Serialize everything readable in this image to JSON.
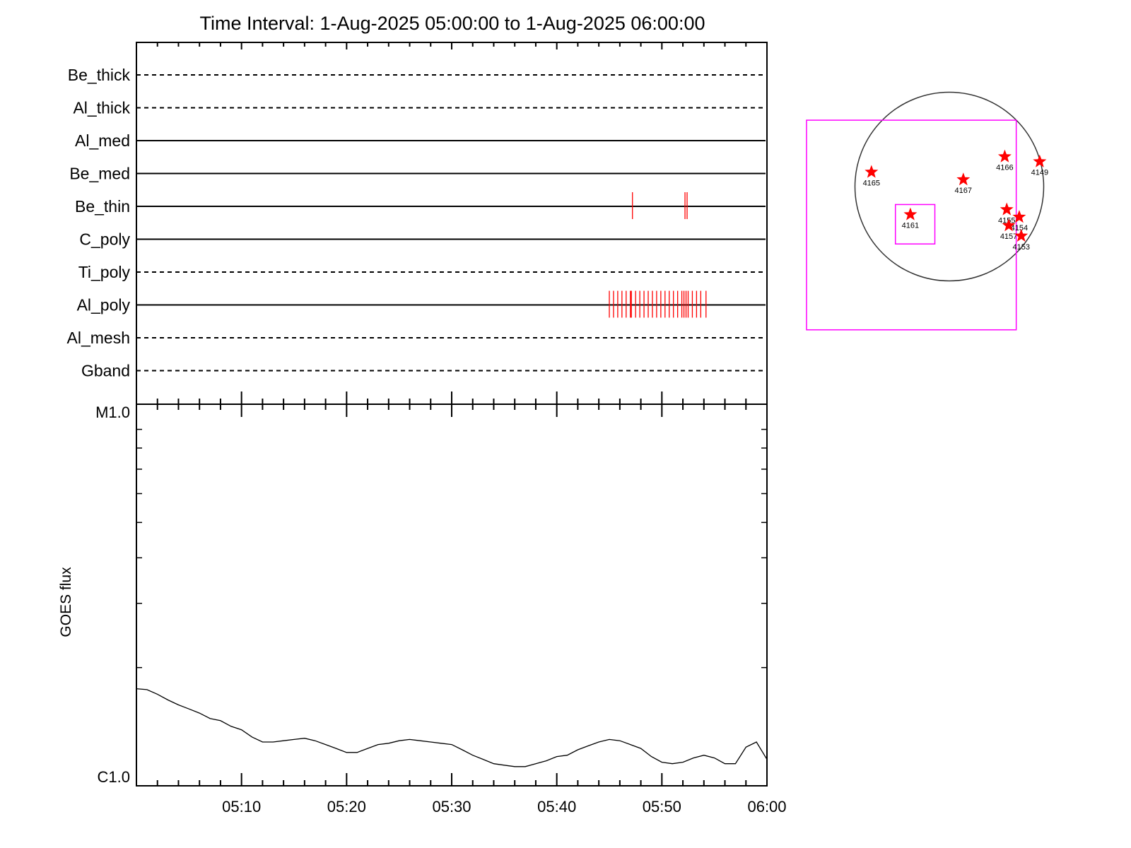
{
  "title": "Time Interval:  1-Aug-2025 05:00:00 to  1-Aug-2025 06:00:00",
  "colors": {
    "axes": "#000000",
    "event_marks": "#ff0000",
    "box": "#ff00ff",
    "stars": "#ff0000",
    "disk": "#333333"
  },
  "chart_data": [
    {
      "type": "timeline",
      "title": "Time Interval:  1-Aug-2025 05:00:00 to  1-Aug-2025 06:00:00",
      "x_range": [
        "05:00",
        "06:00"
      ],
      "rows": [
        {
          "name": "Be_thick",
          "line": "dashed",
          "events": []
        },
        {
          "name": "Al_thick",
          "line": "dashed",
          "events": []
        },
        {
          "name": "Al_med",
          "line": "solid",
          "events": []
        },
        {
          "name": "Be_med",
          "line": "solid",
          "events": []
        },
        {
          "name": "Be_thin",
          "line": "solid",
          "events": [
            "05:47.2",
            "05:52.2",
            "05:52.4"
          ]
        },
        {
          "name": "C_poly",
          "line": "solid",
          "events": []
        },
        {
          "name": "Ti_poly",
          "line": "dashed",
          "events": []
        },
        {
          "name": "Al_poly",
          "line": "solid",
          "events": [
            "05:45.0",
            "05:45.4",
            "05:45.8",
            "05:46.2",
            "05:46.6",
            "05:47.0",
            "05:47.1",
            "05:47.5",
            "05:47.9",
            "05:48.3",
            "05:48.7",
            "05:49.1",
            "05:49.5",
            "05:49.9",
            "05:50.3",
            "05:50.7",
            "05:51.1",
            "05:51.5",
            "05:51.9",
            "05:52.1",
            "05:52.3",
            "05:52.5",
            "05:52.9",
            "05:53.3",
            "05:53.7",
            "05:54.2"
          ]
        },
        {
          "name": "Al_mesh",
          "line": "dashed",
          "events": []
        },
        {
          "name": "Gband",
          "line": "dashed",
          "events": []
        }
      ]
    },
    {
      "type": "line",
      "ylabel": "GOES flux",
      "yscale": "log",
      "ylim": [
        "C1.0",
        "M1.0"
      ],
      "y_tick_labels": [
        "M1.0",
        "C1.0"
      ],
      "x_tick_labels": [
        "05:10",
        "05:20",
        "05:30",
        "05:40",
        "05:50",
        "06:00"
      ],
      "x_range": [
        "05:00",
        "06:00"
      ],
      "series": [
        {
          "x": [
            0,
            1,
            2,
            3,
            4,
            5,
            6,
            7,
            8,
            9,
            10,
            11,
            12,
            13,
            14,
            15,
            16,
            17,
            18,
            19,
            20,
            21,
            22,
            23,
            24,
            25,
            26,
            27,
            28,
            29,
            30,
            31,
            32,
            33,
            34,
            35,
            36,
            37,
            38,
            39,
            40,
            41,
            42,
            43,
            44,
            45,
            46,
            47,
            48,
            49,
            50,
            51,
            52,
            53,
            54,
            55,
            56,
            57,
            58,
            59,
            60
          ],
          "y": [
            1.75,
            1.74,
            1.69,
            1.63,
            1.58,
            1.54,
            1.5,
            1.45,
            1.43,
            1.38,
            1.35,
            1.29,
            1.25,
            1.25,
            1.26,
            1.27,
            1.28,
            1.26,
            1.23,
            1.2,
            1.17,
            1.17,
            1.2,
            1.23,
            1.24,
            1.26,
            1.27,
            1.26,
            1.25,
            1.24,
            1.23,
            1.19,
            1.15,
            1.12,
            1.09,
            1.08,
            1.07,
            1.07,
            1.09,
            1.11,
            1.14,
            1.15,
            1.19,
            1.22,
            1.25,
            1.27,
            1.26,
            1.23,
            1.2,
            1.14,
            1.1,
            1.09,
            1.1,
            1.13,
            1.15,
            1.13,
            1.09,
            1.09,
            1.21,
            1.25,
            1.12
          ]
        }
      ]
    },
    {
      "type": "scatter",
      "description_key": "solar disk active region map",
      "regions": [
        {
          "label": "4165",
          "x": -780,
          "y": 145
        },
        {
          "label": "4167",
          "x": 140,
          "y": 70
        },
        {
          "label": "4166",
          "x": 555,
          "y": 300
        },
        {
          "label": "4149",
          "x": 905,
          "y": 250
        },
        {
          "label": "4155",
          "x": 575,
          "y": -230
        },
        {
          "label": "4154",
          "x": 700,
          "y": -305
        },
        {
          "label": "4157",
          "x": 595,
          "y": -390
        },
        {
          "label": "4153",
          "x": 720,
          "y": -495
        },
        {
          "label": "4161",
          "x": -390,
          "y": -280
        }
      ],
      "disk_radius": 945,
      "fov_box": {
        "x": [
          -1430,
          670
        ],
        "y": [
          -1435,
          665
        ]
      },
      "small_box": {
        "x": [
          -540,
          -145
        ],
        "y": [
          -575,
          -180
        ]
      }
    }
  ]
}
